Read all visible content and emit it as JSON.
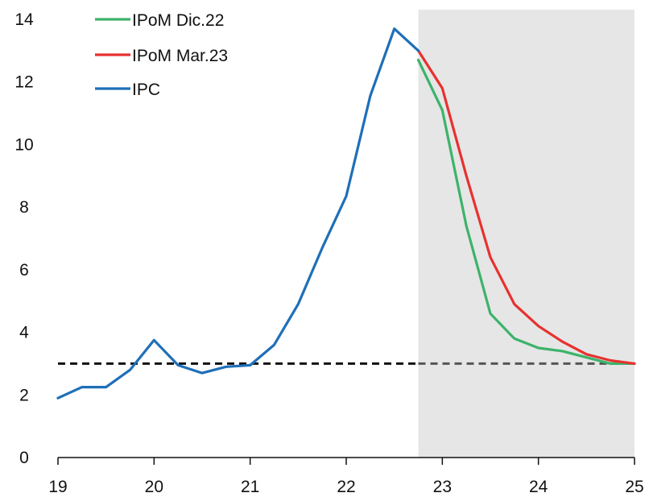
{
  "chart_data": {
    "type": "line",
    "xlim": [
      19,
      25
    ],
    "ylim": [
      0,
      14
    ],
    "x_ticks": [
      "19",
      "20",
      "21",
      "22",
      "23",
      "24",
      "25"
    ],
    "y_ticks": [
      "0",
      "2",
      "4",
      "6",
      "8",
      "10",
      "12",
      "14"
    ],
    "grid": false,
    "legend_position": "top-left",
    "shaded_forecast_region": [
      22.75,
      25
    ],
    "shade_color": "#e6e6e6",
    "reference_line": {
      "y": 3,
      "style": "dashed",
      "color": "#111111",
      "color_in_shade": "#555555"
    },
    "series": [
      {
        "name": "IPoM Dic.22",
        "color": "#3cb36a",
        "x": [
          22.75,
          23.0,
          23.25,
          23.5,
          23.75,
          24.0,
          24.25,
          24.5,
          24.75,
          25.0
        ],
        "values": [
          12.7,
          11.1,
          7.4,
          4.6,
          3.8,
          3.5,
          3.4,
          3.2,
          3.0,
          3.0
        ]
      },
      {
        "name": "IPoM Mar.23",
        "color": "#e8312f",
        "x": [
          22.75,
          23.0,
          23.25,
          23.5,
          23.75,
          24.0,
          24.25,
          24.5,
          24.75,
          25.0
        ],
        "values": [
          13.0,
          11.8,
          9.0,
          6.4,
          4.9,
          4.2,
          3.7,
          3.3,
          3.1,
          3.0
        ]
      },
      {
        "name": "IPC",
        "color": "#1f6fb8",
        "x": [
          19.0,
          19.25,
          19.5,
          19.75,
          20.0,
          20.25,
          20.5,
          20.75,
          21.0,
          21.25,
          21.5,
          21.75,
          22.0,
          22.25,
          22.5,
          22.75
        ],
        "values": [
          1.9,
          2.25,
          2.25,
          2.8,
          3.75,
          2.95,
          2.7,
          2.9,
          2.95,
          3.6,
          4.9,
          6.7,
          8.35,
          11.55,
          13.7,
          13.0
        ]
      }
    ]
  }
}
